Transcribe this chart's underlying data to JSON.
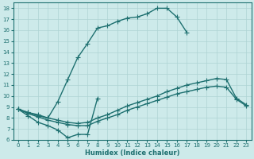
{
  "xlabel": "Humidex (Indice chaleur)",
  "bg_color": "#cdeaea",
  "line_color": "#1e7070",
  "grid_color": "#aed4d4",
  "xlim": [
    -0.5,
    23.5
  ],
  "ylim": [
    6,
    18.5
  ],
  "xticks": [
    0,
    1,
    2,
    3,
    4,
    5,
    6,
    7,
    8,
    9,
    10,
    11,
    12,
    13,
    14,
    15,
    16,
    17,
    18,
    19,
    20,
    21,
    22,
    23
  ],
  "yticks": [
    6,
    7,
    8,
    9,
    10,
    11,
    12,
    13,
    14,
    15,
    16,
    17,
    18
  ],
  "line1_x": [
    0,
    1,
    2,
    3,
    4,
    5,
    6,
    7,
    8,
    9,
    10,
    11,
    12,
    13,
    14,
    15,
    16,
    17
  ],
  "line1_y": [
    8.8,
    8.5,
    8.2,
    8.0,
    9.5,
    11.5,
    13.5,
    14.8,
    16.2,
    16.4,
    16.8,
    17.1,
    17.2,
    17.5,
    18.0,
    18.0,
    17.2,
    15.8
  ],
  "line2_x": [
    0,
    1,
    2,
    3,
    4,
    5,
    6,
    7,
    8
  ],
  "line2_y": [
    8.8,
    8.2,
    7.6,
    7.3,
    6.9,
    6.2,
    6.5,
    6.5,
    9.8
  ],
  "line3_x": [
    0,
    1,
    2,
    3,
    4,
    5,
    6,
    7,
    8,
    9,
    10,
    11,
    12,
    13,
    14,
    15,
    16,
    17,
    18,
    19,
    20,
    21,
    22,
    23
  ],
  "line3_y": [
    8.8,
    8.5,
    8.3,
    8.0,
    7.8,
    7.6,
    7.5,
    7.6,
    8.0,
    8.3,
    8.7,
    9.1,
    9.4,
    9.7,
    10.0,
    10.4,
    10.7,
    11.0,
    11.2,
    11.4,
    11.6,
    11.5,
    9.8,
    9.2
  ],
  "line4_x": [
    0,
    1,
    2,
    3,
    4,
    5,
    6,
    7,
    8,
    9,
    10,
    11,
    12,
    13,
    14,
    15,
    16,
    17,
    18,
    19,
    20,
    21,
    22,
    23
  ],
  "line4_y": [
    8.8,
    8.4,
    8.1,
    7.8,
    7.6,
    7.4,
    7.3,
    7.3,
    7.7,
    8.0,
    8.3,
    8.7,
    9.0,
    9.3,
    9.6,
    9.9,
    10.2,
    10.4,
    10.6,
    10.8,
    10.9,
    10.8,
    9.7,
    9.1
  ]
}
